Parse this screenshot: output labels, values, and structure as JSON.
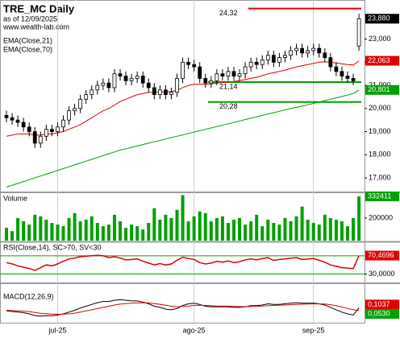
{
  "chart_data": [
    {
      "type": "candlestick",
      "title": "TRE_MC Daily",
      "subtitle": "as of 12/09/2025",
      "source": "www.wealth-lab.com",
      "categories": [
        null,
        null,
        null,
        null,
        null,
        null,
        null,
        null,
        null,
        "jul-25",
        null,
        null,
        null,
        null,
        null,
        null,
        null,
        null,
        null,
        null,
        null,
        null,
        null,
        null,
        null,
        null,
        null,
        null,
        null,
        null,
        null,
        null,
        null,
        "ago-25",
        null,
        null,
        null,
        null,
        null,
        null,
        null,
        null,
        null,
        null,
        null,
        null,
        null,
        null,
        null,
        null,
        null,
        null,
        null,
        null,
        "sep-25",
        null,
        null,
        null,
        null,
        null,
        null,
        null,
        null
      ],
      "open": [
        19.7,
        19.6,
        19.5,
        19.4,
        19.2,
        19.0,
        18.5,
        18.8,
        19.1,
        19.0,
        19.2,
        19.5,
        19.9,
        20.0,
        20.4,
        20.6,
        20.8,
        21.0,
        21.1,
        20.9,
        21.5,
        21.4,
        21.2,
        21.3,
        21.4,
        21.1,
        20.9,
        20.6,
        20.8,
        20.6,
        20.7,
        21.3,
        22.0,
        21.9,
        21.8,
        21.3,
        21.1,
        21.2,
        21.5,
        21.4,
        21.6,
        21.4,
        21.5,
        21.8,
        22.0,
        21.9,
        22.1,
        22.3,
        22.0,
        22.2,
        22.3,
        22.5,
        22.6,
        22.4,
        22.5,
        22.6,
        22.4,
        22.2,
        21.8,
        21.6,
        21.4,
        21.3,
        22.7
      ],
      "high": [
        19.9,
        19.8,
        19.7,
        19.6,
        19.4,
        19.2,
        19.0,
        19.3,
        19.3,
        19.4,
        19.7,
        20.1,
        20.2,
        20.6,
        20.8,
        21.0,
        21.2,
        21.3,
        21.3,
        21.7,
        21.7,
        21.6,
        21.5,
        21.6,
        21.6,
        21.3,
        21.1,
        21.0,
        21.0,
        20.9,
        21.5,
        22.2,
        22.2,
        22.1,
        22.0,
        21.5,
        21.4,
        21.7,
        21.7,
        21.8,
        21.8,
        21.7,
        22.0,
        22.2,
        22.2,
        22.3,
        22.5,
        22.5,
        22.4,
        22.5,
        22.7,
        22.8,
        22.8,
        22.7,
        22.8,
        22.8,
        22.6,
        22.4,
        22.0,
        21.8,
        21.6,
        21.5,
        24.1
      ],
      "low": [
        19.4,
        19.3,
        19.2,
        19.0,
        18.8,
        18.3,
        18.3,
        18.6,
        18.8,
        18.8,
        19.0,
        19.3,
        19.7,
        19.8,
        20.2,
        20.4,
        20.6,
        20.8,
        20.7,
        20.7,
        21.2,
        21.0,
        21.0,
        21.1,
        20.9,
        20.7,
        20.4,
        20.4,
        20.4,
        20.4,
        20.5,
        21.1,
        21.7,
        21.6,
        21.1,
        20.9,
        20.9,
        21.0,
        21.2,
        21.2,
        21.2,
        21.2,
        21.3,
        21.6,
        21.7,
        21.7,
        21.9,
        21.8,
        21.8,
        22.0,
        22.1,
        22.3,
        22.2,
        22.2,
        22.3,
        22.2,
        22.0,
        21.6,
        21.4,
        21.2,
        21.1,
        21.0,
        22.5
      ],
      "close": [
        19.6,
        19.5,
        19.4,
        19.2,
        19.0,
        18.5,
        18.8,
        19.1,
        19.0,
        19.2,
        19.5,
        19.9,
        20.0,
        20.4,
        20.6,
        20.8,
        21.0,
        21.1,
        20.9,
        21.5,
        21.4,
        21.2,
        21.3,
        21.4,
        21.1,
        20.9,
        20.6,
        20.8,
        20.6,
        20.7,
        21.3,
        22.0,
        21.9,
        21.8,
        21.3,
        21.1,
        21.2,
        21.5,
        21.4,
        21.6,
        21.4,
        21.5,
        21.8,
        22.0,
        21.9,
        22.1,
        22.3,
        22.0,
        22.2,
        22.3,
        22.5,
        22.6,
        22.4,
        22.5,
        22.6,
        22.4,
        22.2,
        21.8,
        21.6,
        21.4,
        21.3,
        21.2,
        23.88
      ],
      "close_label": "23,880",
      "series": [
        {
          "name": "EMA(Close,21)",
          "color": "#e00000",
          "value_label": "22,063",
          "values": [
            18.8,
            18.85,
            18.9,
            18.9,
            18.9,
            18.85,
            18.85,
            18.9,
            18.9,
            18.95,
            19.0,
            19.1,
            19.2,
            19.3,
            19.45,
            19.6,
            19.75,
            19.9,
            20.0,
            20.15,
            20.3,
            20.4,
            20.5,
            20.6,
            20.65,
            20.7,
            20.7,
            20.72,
            20.72,
            20.73,
            20.78,
            20.9,
            21.0,
            21.05,
            21.05,
            21.05,
            21.06,
            21.1,
            21.12,
            21.15,
            21.17,
            21.2,
            21.25,
            21.3,
            21.35,
            21.42,
            21.5,
            21.55,
            21.6,
            21.66,
            21.73,
            21.8,
            21.85,
            21.9,
            21.95,
            22.0,
            22.02,
            22.0,
            21.97,
            21.93,
            21.9,
            21.88,
            22.063
          ]
        },
        {
          "name": "EMA(Close,70)",
          "color": "#00a000",
          "value_label": "20,801",
          "values": [
            16.6,
            16.68,
            16.76,
            16.84,
            16.92,
            17.0,
            17.08,
            17.16,
            17.24,
            17.32,
            17.4,
            17.48,
            17.56,
            17.64,
            17.72,
            17.8,
            17.88,
            17.96,
            18.04,
            18.12,
            18.2,
            18.26,
            18.32,
            18.38,
            18.44,
            18.5,
            18.56,
            18.62,
            18.68,
            18.74,
            18.8,
            18.86,
            18.92,
            18.98,
            19.04,
            19.1,
            19.16,
            19.22,
            19.28,
            19.34,
            19.4,
            19.46,
            19.52,
            19.58,
            19.64,
            19.7,
            19.76,
            19.82,
            19.88,
            19.94,
            20.0,
            20.05,
            20.1,
            20.16,
            20.22,
            20.28,
            20.34,
            20.4,
            20.46,
            20.52,
            20.58,
            20.65,
            20.801
          ]
        }
      ],
      "levels": [
        {
          "value": 24.32,
          "label": "24,32",
          "color": "#e00000"
        },
        {
          "value": 21.14,
          "label": "21,14",
          "color": "#00a000"
        },
        {
          "value": 20.28,
          "label": "20,28",
          "color": "#00a000"
        }
      ],
      "ylim": [
        16.41,
        24.62
      ],
      "yticks": [
        {
          "value": 17,
          "label": "17,000"
        },
        {
          "value": 18,
          "label": "18,000"
        },
        {
          "value": 19,
          "label": "19,000"
        },
        {
          "value": 20,
          "label": "20,000"
        },
        {
          "value": 21,
          "label": "21,000"
        },
        {
          "value": 22,
          "label": "22,000"
        },
        {
          "value": 23,
          "label": "23,000"
        }
      ]
    },
    {
      "type": "bar",
      "title": "Volume",
      "color": "#00a000",
      "values": [
        140000,
        120000,
        200000,
        180000,
        160000,
        220000,
        210000,
        190000,
        170000,
        160000,
        150000,
        200000,
        230000,
        180000,
        190000,
        210000,
        170000,
        150000,
        160000,
        220000,
        180000,
        140000,
        160000,
        150000,
        130000,
        170000,
        260000,
        190000,
        220000,
        200000,
        250000,
        340000,
        180000,
        210000,
        240000,
        230000,
        180000,
        200000,
        210000,
        170000,
        190000,
        200000,
        160000,
        180000,
        220000,
        150000,
        190000,
        170000,
        160000,
        200000,
        180000,
        210000,
        270000,
        190000,
        170000,
        160000,
        220000,
        200000,
        190000,
        180000,
        150000,
        200000,
        332411
      ],
      "ylim": [
        62000,
        352000
      ],
      "yticks": [
        200000
      ]
    },
    {
      "type": "rsi",
      "title": "RSI(Close,14), SC>70, SV<30",
      "color": "#e00000",
      "bands": [
        70,
        30
      ],
      "values": [
        55,
        52,
        48,
        45,
        42,
        38,
        44,
        50,
        48,
        52,
        58,
        63,
        65,
        68,
        69,
        70,
        71,
        70,
        66,
        68,
        65,
        61,
        62,
        63,
        58,
        54,
        50,
        53,
        50,
        52,
        60,
        67,
        64,
        62,
        55,
        52,
        54,
        58,
        56,
        59,
        55,
        57,
        61,
        63,
        61,
        64,
        66,
        60,
        62,
        63,
        65,
        66,
        62,
        63,
        64,
        60,
        56,
        50,
        47,
        44,
        43,
        42,
        70.4696
      ],
      "value_label": "70,4696",
      "ylim": [
        22,
        98
      ],
      "yticks": [
        {
          "value": 30,
          "label": "30,0000"
        }
      ]
    },
    {
      "type": "line",
      "title": "MACD(12,26,9)",
      "series": [
        {
          "color": "#000000",
          "value_label": "0,1037",
          "values": [
            0.05,
            0.04,
            0.03,
            0.02,
            0.0,
            -0.03,
            -0.04,
            -0.03,
            -0.03,
            -0.02,
            0.0,
            0.03,
            0.06,
            0.1,
            0.13,
            0.16,
            0.19,
            0.21,
            0.21,
            0.23,
            0.24,
            0.23,
            0.22,
            0.22,
            0.2,
            0.17,
            0.13,
            0.11,
            0.08,
            0.07,
            0.09,
            0.14,
            0.17,
            0.18,
            0.16,
            0.13,
            0.12,
            0.12,
            0.12,
            0.12,
            0.11,
            0.11,
            0.12,
            0.14,
            0.14,
            0.15,
            0.17,
            0.16,
            0.16,
            0.17,
            0.18,
            0.19,
            0.18,
            0.18,
            0.18,
            0.17,
            0.15,
            0.11,
            0.07,
            0.03,
            0.0,
            -0.02,
            0.1037
          ]
        },
        {
          "color": "#e00000",
          "value_label": "0,0530",
          "values": [
            0.06,
            0.058,
            0.052,
            0.046,
            0.037,
            0.024,
            0.011,
            0.003,
            -0.004,
            -0.007,
            -0.006,
            0.001,
            0.012,
            0.03,
            0.05,
            0.07,
            0.09,
            0.11,
            0.13,
            0.15,
            0.165,
            0.175,
            0.18,
            0.185,
            0.188,
            0.185,
            0.175,
            0.162,
            0.146,
            0.13,
            0.122,
            0.125,
            0.134,
            0.143,
            0.146,
            0.143,
            0.138,
            0.134,
            0.131,
            0.129,
            0.126,
            0.123,
            0.122,
            0.125,
            0.128,
            0.132,
            0.139,
            0.143,
            0.146,
            0.15,
            0.155,
            0.161,
            0.164,
            0.167,
            0.169,
            0.169,
            0.166,
            0.155,
            0.138,
            0.116,
            0.093,
            0.07,
            0.053
          ]
        }
      ],
      "ylim": [
        -0.15,
        0.45
      ]
    }
  ]
}
